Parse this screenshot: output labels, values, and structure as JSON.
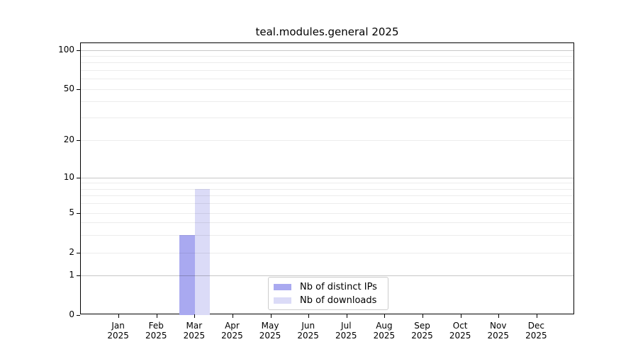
{
  "title": "teal.modules.general 2025",
  "chart_data": {
    "type": "bar",
    "title": "teal.modules.general 2025",
    "categories": [
      "Jan 2025",
      "Feb 2025",
      "Mar 2025",
      "Apr 2025",
      "May 2025",
      "Jun 2025",
      "Jul 2025",
      "Aug 2025",
      "Sep 2025",
      "Oct 2025",
      "Nov 2025",
      "Dec 2025"
    ],
    "series": [
      {
        "name": "Nb of distinct IPs",
        "color": "#a9a9f0",
        "values": [
          0,
          0,
          3,
          0,
          0,
          0,
          0,
          0,
          0,
          0,
          0,
          0
        ]
      },
      {
        "name": "Nb of downloads",
        "color": "#dbdbf7",
        "values": [
          0,
          0,
          8,
          0,
          0,
          0,
          0,
          0,
          0,
          0,
          0,
          0
        ]
      }
    ],
    "yscale": "symlog",
    "ylim": [
      0,
      115
    ],
    "y_ticks": [
      0,
      1,
      2,
      5,
      10,
      20,
      50,
      100
    ],
    "y_major_gridlines": [
      1,
      10,
      100
    ],
    "y_minor_gridlines": [
      2,
      3,
      4,
      5,
      6,
      7,
      8,
      9,
      20,
      30,
      40,
      50,
      60,
      70,
      80,
      90
    ],
    "grid": "horizontal",
    "legend_position": "lower center"
  }
}
